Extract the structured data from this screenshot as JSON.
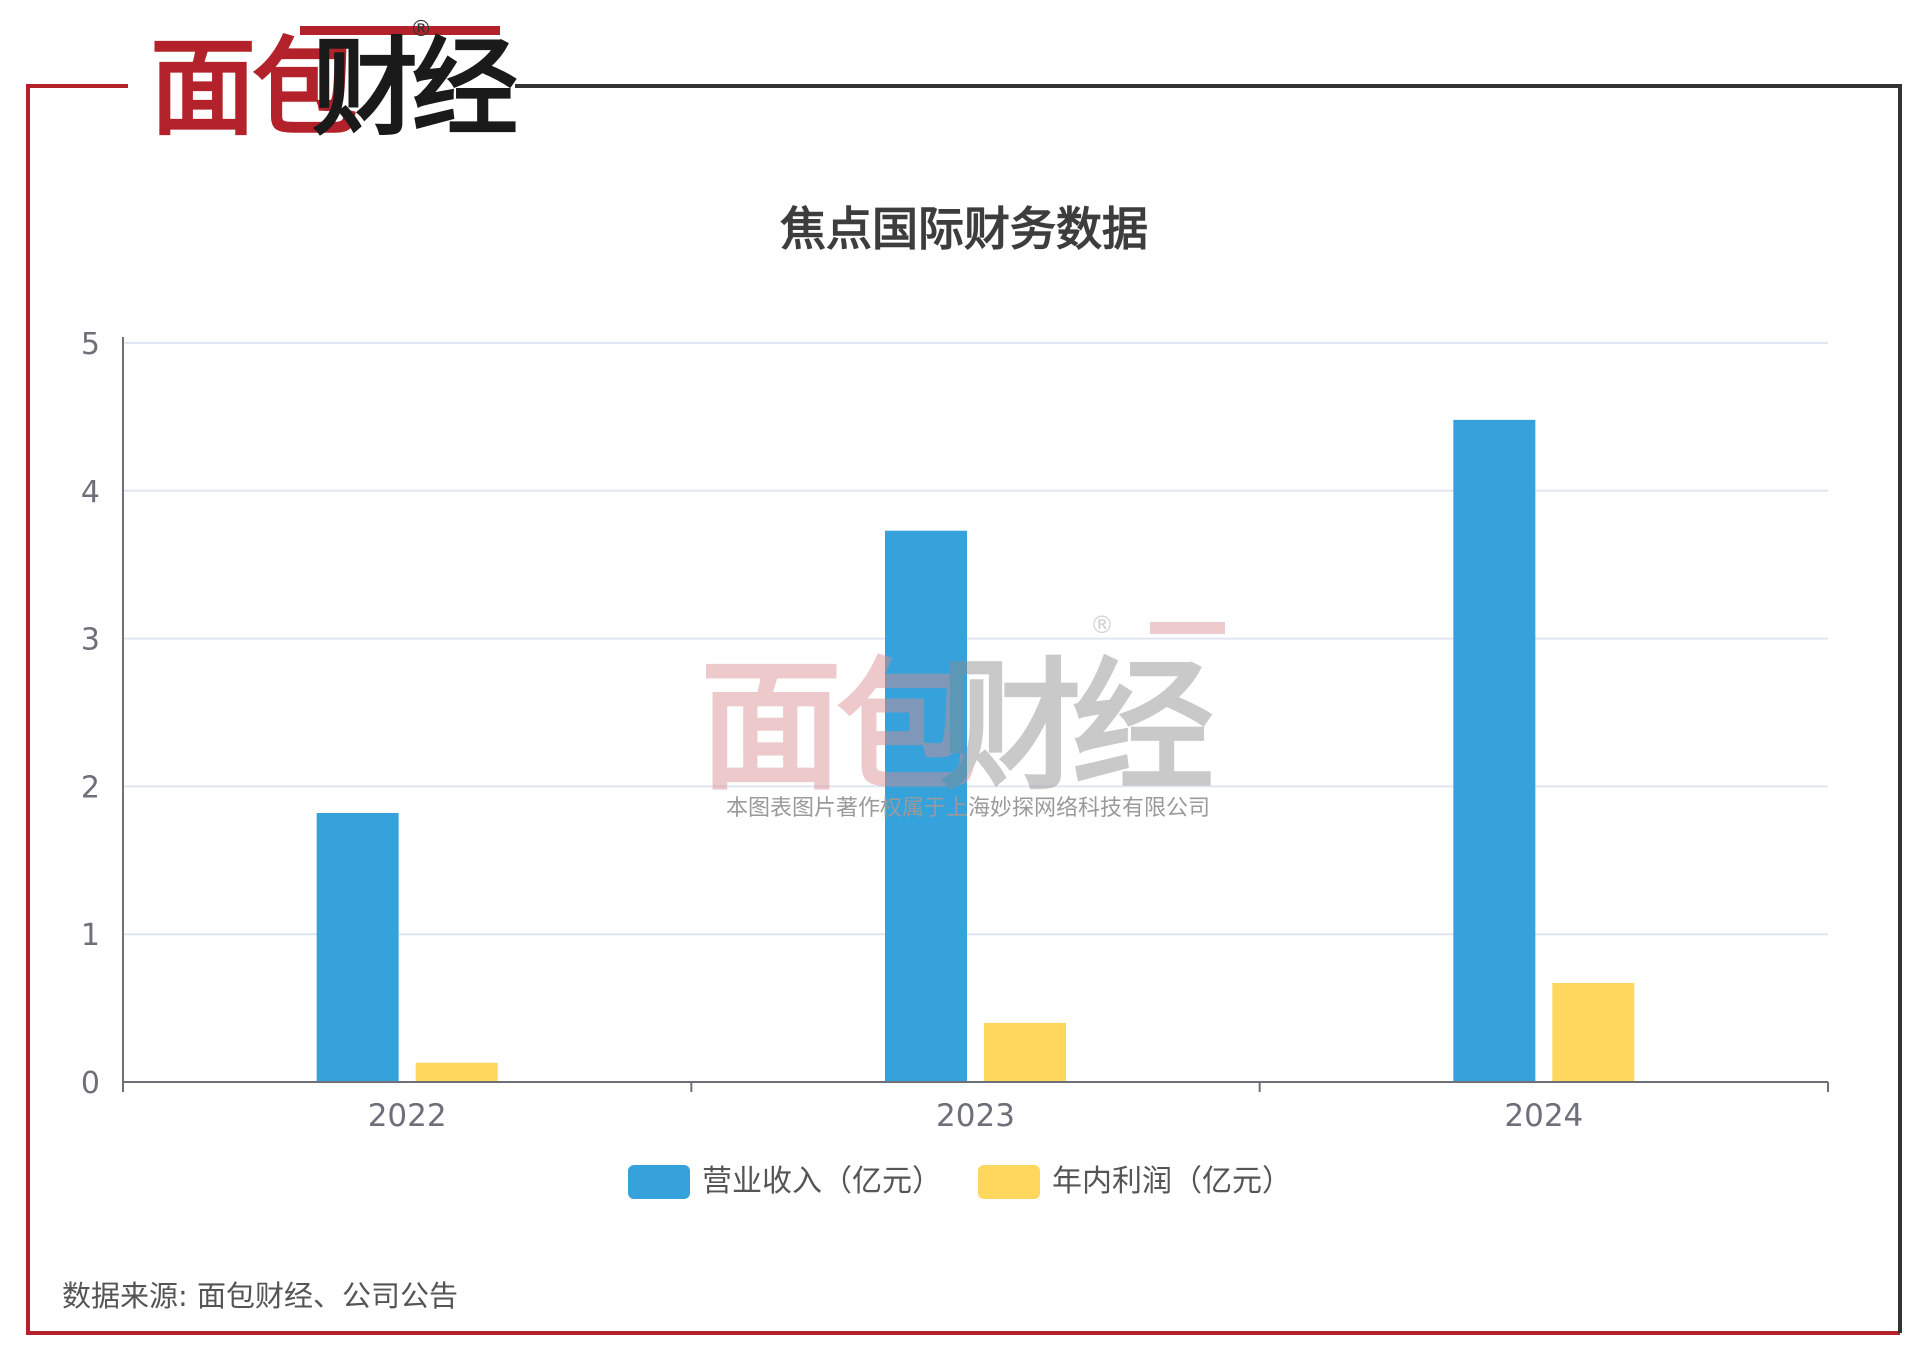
{
  "brand": {
    "logo_text": "面包财经",
    "registered_mark": "®"
  },
  "watermark": {
    "logo_text": "面包财经",
    "registered_mark": "®",
    "copyright": "本图表图片著作权属于上海妙探网络科技有限公司"
  },
  "source_note": "数据来源: 面包财经、公司公告",
  "colors": {
    "brand_red": "#b3222a",
    "frame_dark": "#333333",
    "revenue": "#36a2dc",
    "profit": "#fed75c",
    "axis": "#6e7079",
    "grid": "#e0e6f1"
  },
  "chart_data": {
    "type": "bar",
    "title": "焦点国际财务数据",
    "categories": [
      "2022",
      "2023",
      "2024"
    ],
    "series": [
      {
        "name": "营业收入（亿元）",
        "color": "#36a2dc",
        "values": [
          1.82,
          3.73,
          4.48
        ]
      },
      {
        "name": "年内利润（亿元）",
        "color": "#fed75c",
        "values": [
          0.13,
          0.4,
          0.67
        ]
      }
    ],
    "xlabel": "",
    "ylabel": "",
    "ylim": [
      0,
      5
    ],
    "yticks": [
      0,
      1,
      2,
      3,
      4,
      5
    ],
    "grid": true,
    "legend_position": "bottom-center"
  }
}
